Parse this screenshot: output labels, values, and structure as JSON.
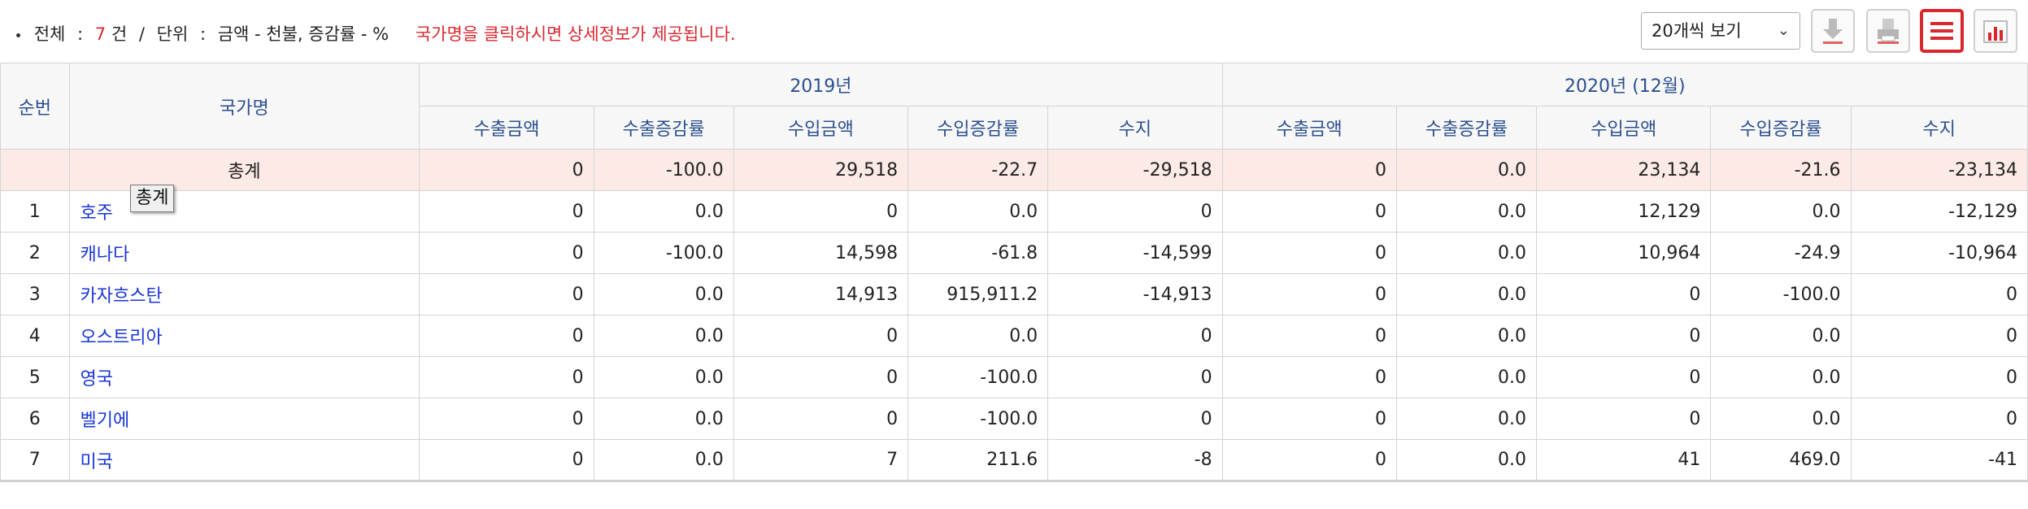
{
  "summary": {
    "total_label": "전체",
    "colon": ":",
    "total_count": "7",
    "count_unit": "건",
    "slash": "/",
    "unit_label": "단위",
    "unit_value": "금액 - 천불, 증감률 - %",
    "notice": "국가명을 클릭하시면 상세정보가 제공됩니다."
  },
  "toolbar": {
    "page_size": "20개씩 보기",
    "buttons": [
      "download-icon",
      "print-icon",
      "list-view-icon",
      "chart-icon"
    ]
  },
  "colors": {
    "accent_red": "#d9272e",
    "link_blue": "#1a35d8",
    "header_text": "#2a4f8f",
    "total_row_bg": "#fceae6"
  },
  "table": {
    "header": {
      "seq": "순번",
      "country": "국가명",
      "period1": "2019년",
      "period2": "2020년 (12월)",
      "sub": [
        "수출금액",
        "수출증감률",
        "수입금액",
        "수입증감률",
        "수지"
      ]
    },
    "total": {
      "label": "총계",
      "values": [
        "0",
        "-100.0",
        "29,518",
        "-22.7",
        "-29,518",
        "0",
        "0.0",
        "23,134",
        "-21.6",
        "-23,134"
      ]
    },
    "rows": [
      {
        "no": "1",
        "country": "호주",
        "values": [
          "0",
          "0.0",
          "0",
          "0.0",
          "0",
          "0",
          "0.0",
          "12,129",
          "0.0",
          "-12,129"
        ]
      },
      {
        "no": "2",
        "country": "캐나다",
        "values": [
          "0",
          "-100.0",
          "14,598",
          "-61.8",
          "-14,599",
          "0",
          "0.0",
          "10,964",
          "-24.9",
          "-10,964"
        ]
      },
      {
        "no": "3",
        "country": "카자흐스탄",
        "values": [
          "0",
          "0.0",
          "14,913",
          "915,911.2",
          "-14,913",
          "0",
          "0.0",
          "0",
          "-100.0",
          "0"
        ]
      },
      {
        "no": "4",
        "country": "오스트리아",
        "values": [
          "0",
          "0.0",
          "0",
          "0.0",
          "0",
          "0",
          "0.0",
          "0",
          "0.0",
          "0"
        ]
      },
      {
        "no": "5",
        "country": "영국",
        "values": [
          "0",
          "0.0",
          "0",
          "-100.0",
          "0",
          "0",
          "0.0",
          "0",
          "0.0",
          "0"
        ]
      },
      {
        "no": "6",
        "country": "벨기에",
        "values": [
          "0",
          "0.0",
          "0",
          "-100.0",
          "0",
          "0",
          "0.0",
          "0",
          "0.0",
          "0"
        ]
      },
      {
        "no": "7",
        "country": "미국",
        "values": [
          "0",
          "0.0",
          "7",
          "211.6",
          "-8",
          "0",
          "0.0",
          "41",
          "469.0",
          "-41"
        ]
      }
    ]
  },
  "tooltip": "총계"
}
